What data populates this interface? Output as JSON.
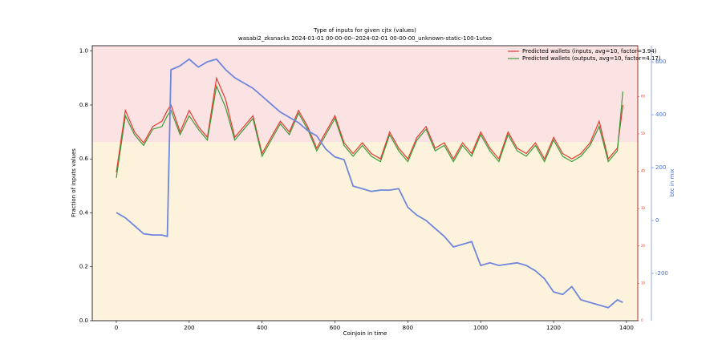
{
  "chart_data": {
    "type": "line",
    "title": "Type of inputs for given cjtx (values)",
    "subtitle": "wasabi2_zksnacks 2024-01-01 00-00-00--2024-02-01 00-00-00_unknown-static-100-1utxo",
    "xlabel": "Coinjoin in time",
    "ylabel": "Fraction of inputs values",
    "y3label": "btc in mix",
    "xlim": [
      -66,
      1431
    ],
    "xticks": [
      0,
      200,
      400,
      600,
      800,
      1000,
      1200,
      1400
    ],
    "ylim": [
      0,
      1.02
    ],
    "yticks": [
      {
        "value": 0,
        "label": "0.0"
      },
      {
        "value": 0.2,
        "label": "0.2"
      },
      {
        "value": 0.4,
        "label": "0.4"
      },
      {
        "value": 0.6,
        "label": "0.6"
      },
      {
        "value": 0.8,
        "label": "0.8"
      },
      {
        "value": 1,
        "label": "1.0"
      }
    ],
    "y2lim": [
      0,
      73.6
    ],
    "y2ticks": [
      0,
      10,
      20,
      30,
      40,
      50,
      60
    ],
    "y2color": "#e8392c",
    "y3lim": [
      -379,
      661
    ],
    "y3ticks": [
      -200,
      0,
      200,
      400,
      600
    ],
    "y3color": "#4a6fd0",
    "legend": "upper right",
    "x": [
      0,
      25,
      50,
      75,
      100,
      125,
      140,
      150,
      175,
      200,
      225,
      250,
      275,
      300,
      325,
      350,
      375,
      400,
      425,
      450,
      475,
      500,
      525,
      550,
      575,
      600,
      625,
      650,
      675,
      700,
      725,
      750,
      775,
      800,
      825,
      850,
      875,
      900,
      925,
      950,
      975,
      1000,
      1025,
      1050,
      1075,
      1100,
      1125,
      1150,
      1175,
      1200,
      1225,
      1250,
      1275,
      1300,
      1325,
      1350,
      1375,
      1390
    ],
    "series": [
      {
        "name": "Predicted wallets (inputs, avg=10, factor=3.94)",
        "color": "#e8392c",
        "values": [
          0.55,
          0.78,
          0.7,
          0.66,
          0.72,
          0.74,
          0.78,
          0.8,
          0.7,
          0.78,
          0.72,
          0.68,
          0.9,
          0.82,
          0.68,
          0.72,
          0.76,
          0.62,
          0.68,
          0.74,
          0.7,
          0.78,
          0.72,
          0.64,
          0.7,
          0.76,
          0.66,
          0.62,
          0.66,
          0.62,
          0.6,
          0.7,
          0.64,
          0.6,
          0.68,
          0.72,
          0.64,
          0.66,
          0.6,
          0.66,
          0.62,
          0.7,
          0.64,
          0.6,
          0.7,
          0.64,
          0.62,
          0.66,
          0.6,
          0.68,
          0.62,
          0.6,
          0.62,
          0.66,
          0.74,
          0.6,
          0.64,
          0.8
        ]
      },
      {
        "name": "Predicted wallets (outputs, avg=10, factor=4.17)",
        "color": "#3a9a3a",
        "values": [
          0.53,
          0.76,
          0.69,
          0.65,
          0.71,
          0.72,
          0.76,
          0.78,
          0.69,
          0.76,
          0.71,
          0.67,
          0.87,
          0.79,
          0.67,
          0.71,
          0.75,
          0.61,
          0.67,
          0.73,
          0.69,
          0.77,
          0.71,
          0.63,
          0.69,
          0.75,
          0.65,
          0.61,
          0.65,
          0.61,
          0.59,
          0.69,
          0.63,
          0.59,
          0.67,
          0.71,
          0.63,
          0.65,
          0.59,
          0.65,
          0.61,
          0.69,
          0.63,
          0.59,
          0.69,
          0.63,
          0.61,
          0.65,
          0.59,
          0.67,
          0.61,
          0.59,
          0.61,
          0.65,
          0.72,
          0.59,
          0.63,
          0.85
        ]
      },
      {
        "color": "#6f86dc",
        "axis": "y3",
        "values": [
          30,
          10,
          -20,
          -50,
          -55,
          -55,
          -60,
          570,
          585,
          610,
          580,
          600,
          610,
          570,
          540,
          520,
          500,
          470,
          440,
          410,
          390,
          370,
          340,
          320,
          270,
          240,
          230,
          130,
          120,
          110,
          115,
          115,
          120,
          50,
          20,
          0,
          -30,
          -60,
          -100,
          -90,
          -80,
          -170,
          -160,
          -170,
          -165,
          -160,
          -170,
          -190,
          -220,
          -270,
          -280,
          -250,
          -300,
          -310,
          -320,
          -330,
          -300,
          -310
        ]
      }
    ]
  }
}
